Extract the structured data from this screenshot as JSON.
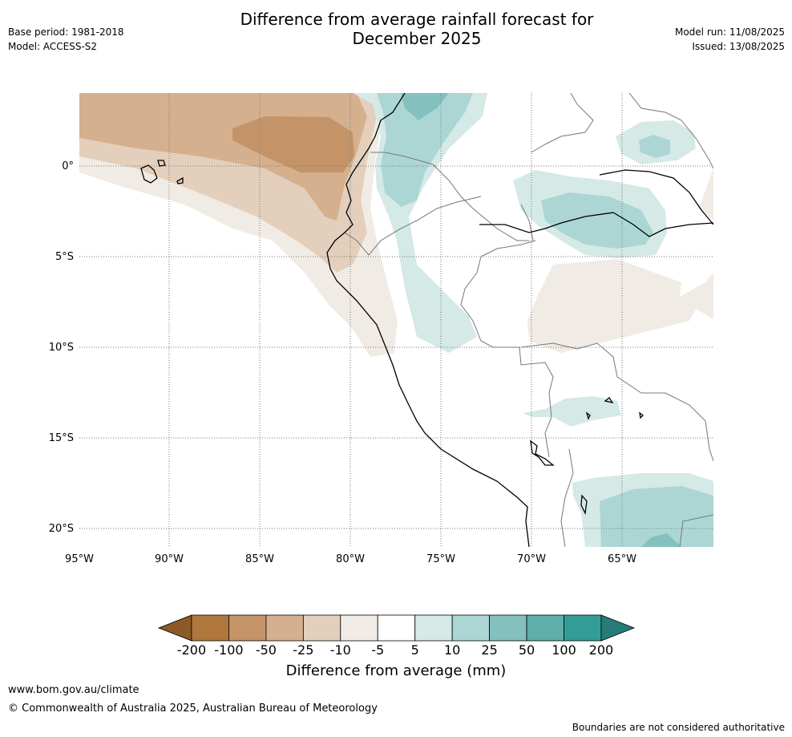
{
  "title_line1": "Difference from average rainfall forecast for",
  "title_line2": "December 2025",
  "base_period": "Base period: 1981-2018",
  "model": "Model: ACCESS-S2",
  "model_run": "Model run: 11/08/2025",
  "issued": "Issued: 13/08/2025",
  "lat_labels": [
    "0°",
    "5°S",
    "10°S",
    "15°S",
    "20°S"
  ],
  "lon_labels": [
    "95°W",
    "90°W",
    "85°W",
    "80°W",
    "75°W",
    "70°W",
    "65°W"
  ],
  "colorbar": {
    "ticks": [
      "-200",
      "-100",
      "-50",
      "-25",
      "-10",
      "-5",
      "5",
      "10",
      "25",
      "50",
      "100",
      "200"
    ],
    "colors": [
      "#8c5a26",
      "#b0773d",
      "#c49468",
      "#d4b08e",
      "#e3cfbc",
      "#f1ebe5",
      "#ffffff",
      "#d5e9e7",
      "#acd6d4",
      "#84c1be",
      "#5eaeaa",
      "#349c97",
      "#267c77"
    ],
    "label": "Difference from average (mm)"
  },
  "footer": {
    "url": "www.bom.gov.au/climate",
    "copyright": "© Commonwealth of Australia 2025, Australian Bureau of Meteorology",
    "disclaimer": "Boundaries are not considered authoritative"
  }
}
